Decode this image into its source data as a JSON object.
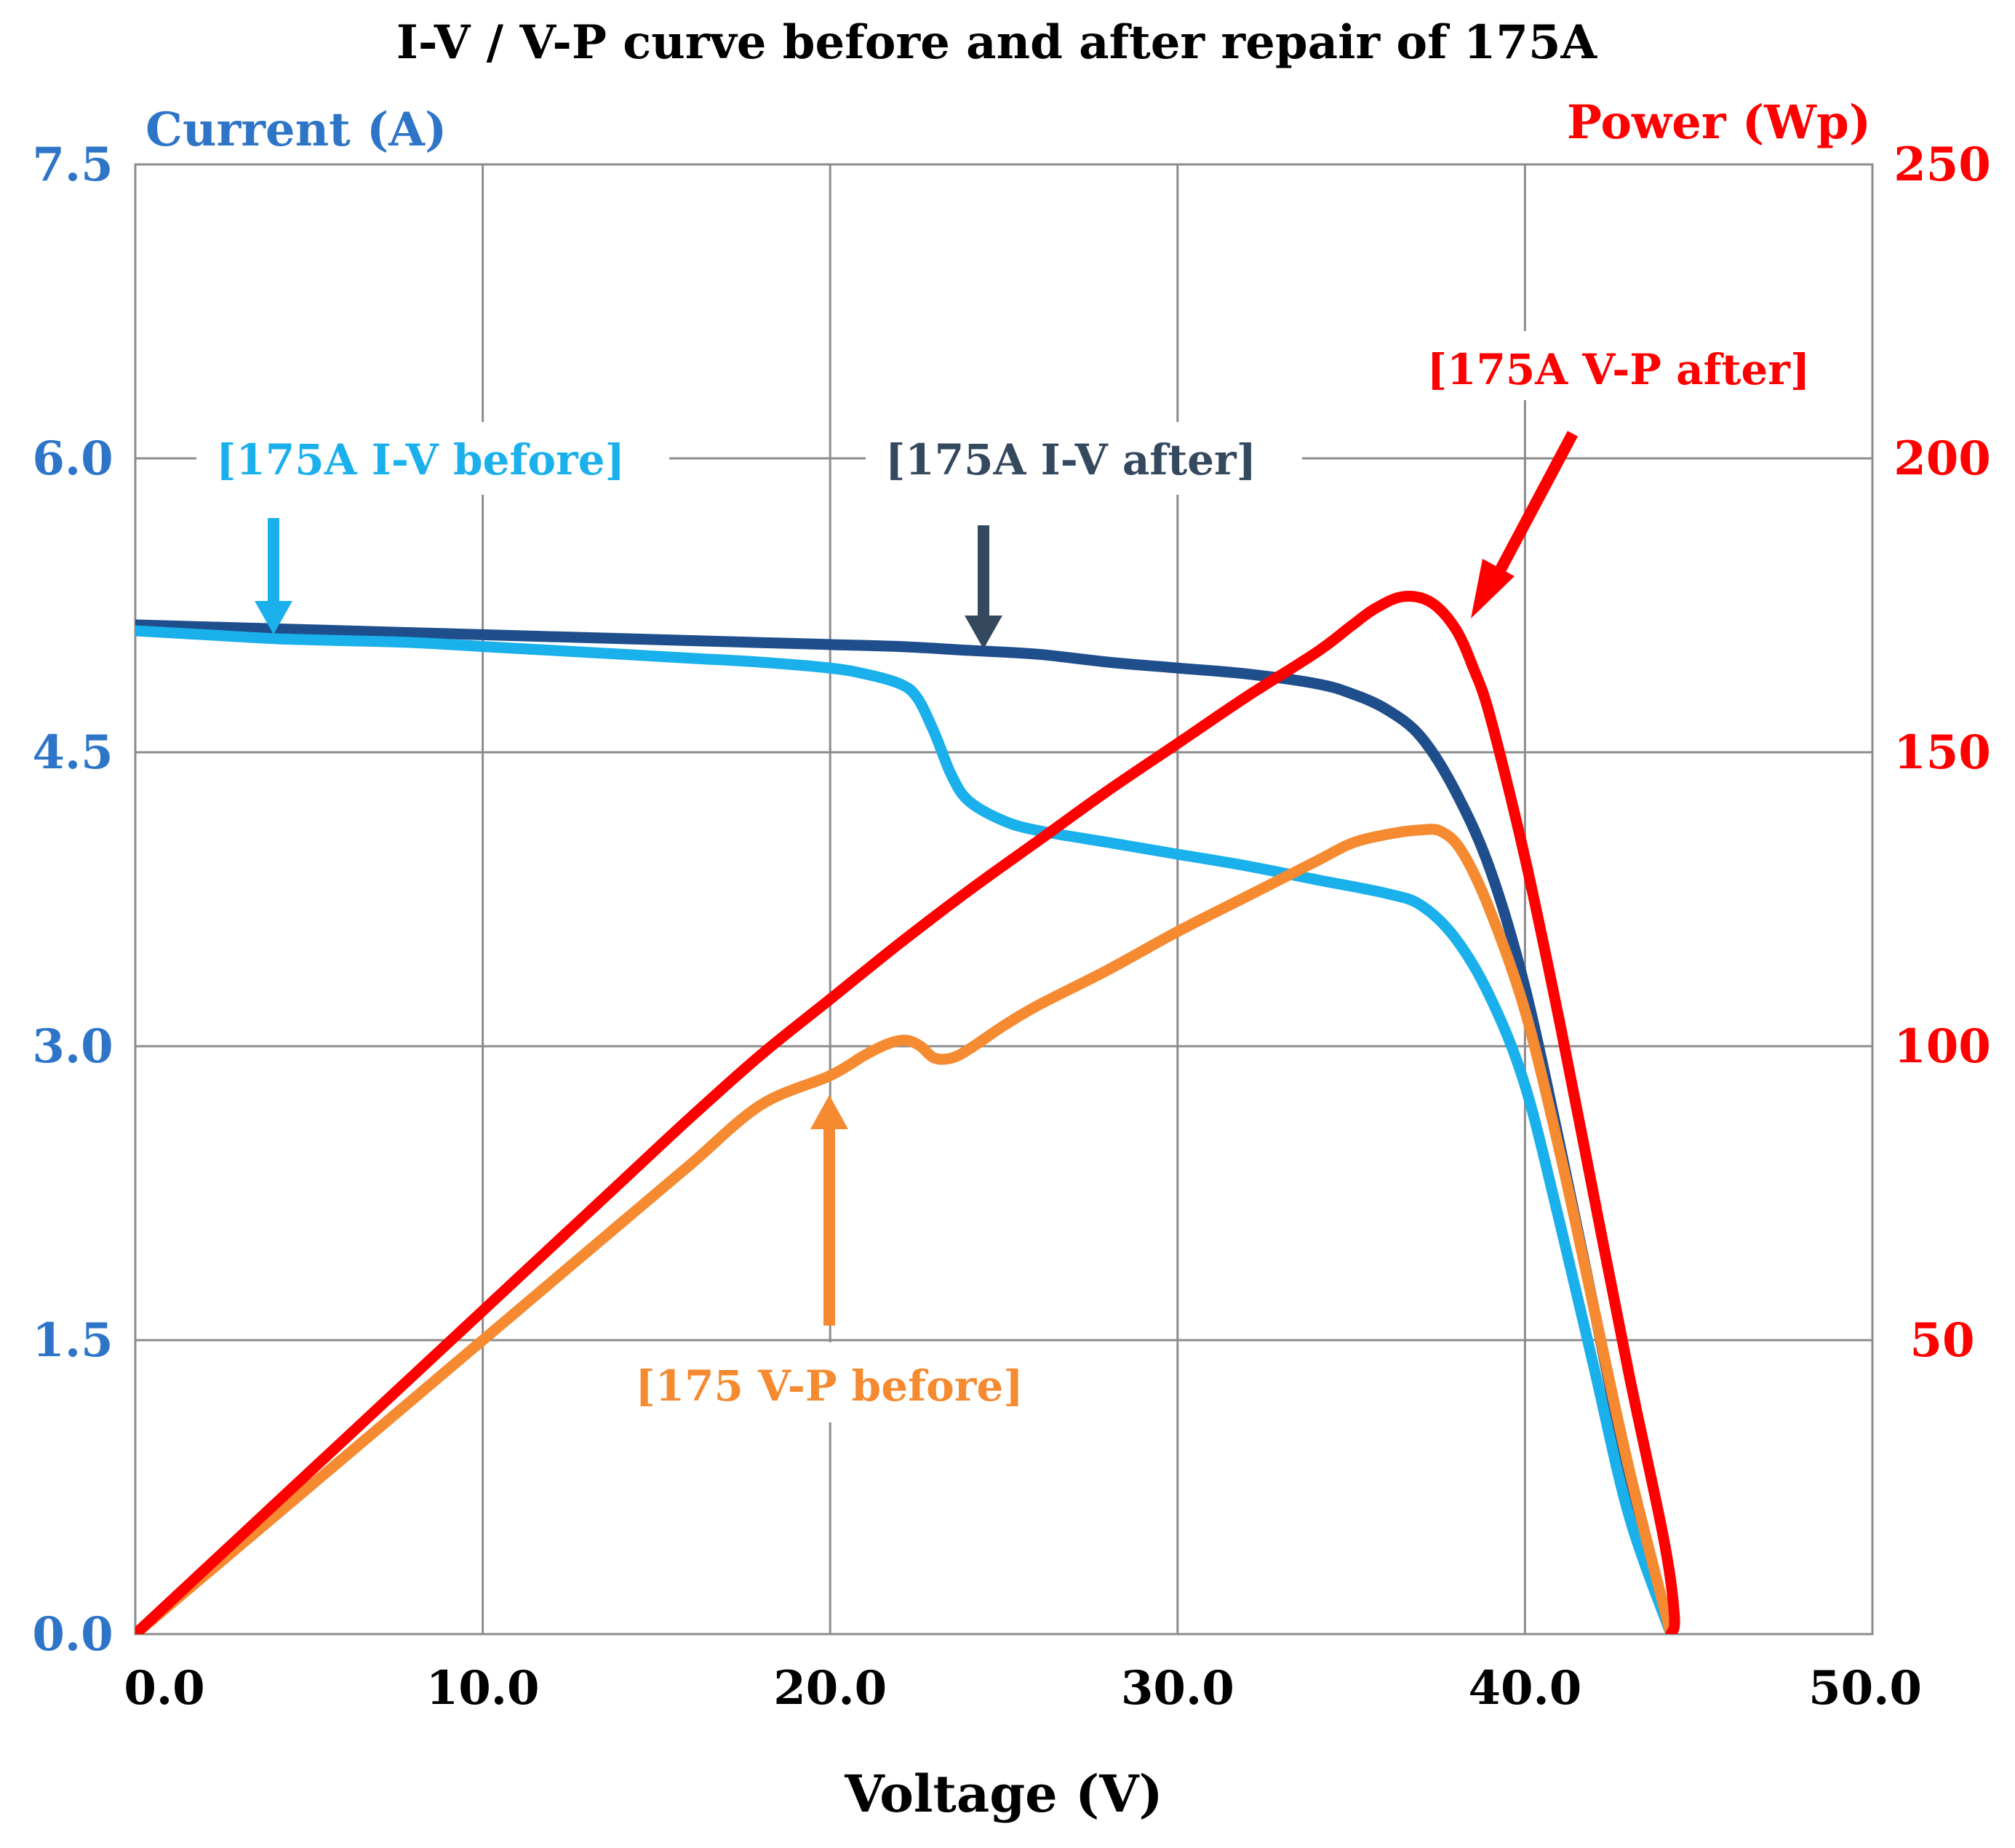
{
  "chart_data": {
    "type": "line",
    "title": "I-V / V-P curve before and after repair of 175A",
    "xlabel": "Voltage (V)",
    "ylabel_left": "Current (A)",
    "ylabel_right": "Power (Wp)",
    "xlim": [
      0,
      50
    ],
    "ylim_left": [
      0,
      7.5
    ],
    "ylim_right": [
      0,
      250
    ],
    "grid": true,
    "x_ticks": [
      0,
      10,
      20,
      30,
      40,
      50
    ],
    "x_tick_labels": [
      "0.0",
      "10.0",
      "20.0",
      "30.0",
      "40.0",
      "50.0"
    ],
    "y_left_ticks": [
      0,
      1.5,
      3.0,
      4.5,
      6.0,
      7.5
    ],
    "y_left_tick_labels": [
      "0.0",
      "1.5",
      "3.0",
      "4.5",
      "6.0",
      "7.5"
    ],
    "y_right_ticks": [
      50,
      100,
      150,
      200,
      250
    ],
    "y_right_tick_labels": [
      "50",
      "100",
      "150",
      "200",
      "250"
    ],
    "colors": {
      "left_axis": "#2e75c8",
      "right_axis": "#ff0000",
      "iv_before": "#1ab0ec",
      "iv_after": "#1f4e8c",
      "vp_before": "#f58a30",
      "vp_after": "#ff0000",
      "arrow_iv_after": "#34495e"
    },
    "series": [
      {
        "name": "175A I-V before",
        "axis": "left",
        "x": [
          0,
          2,
          4,
          6,
          8,
          10,
          12,
          14,
          16,
          18,
          20,
          21,
          22,
          22.5,
          23,
          23.5,
          24,
          25,
          26,
          28,
          30,
          32,
          34,
          36,
          37,
          38,
          39,
          40,
          41,
          42,
          43,
          44.2
        ],
        "y": [
          5.12,
          5.1,
          5.08,
          5.07,
          5.06,
          5.04,
          5.02,
          5.0,
          4.98,
          4.96,
          4.93,
          4.9,
          4.85,
          4.78,
          4.6,
          4.38,
          4.25,
          4.15,
          4.1,
          4.04,
          3.98,
          3.92,
          3.85,
          3.78,
          3.72,
          3.55,
          3.25,
          2.8,
          2.1,
          1.35,
          0.6,
          0
        ]
      },
      {
        "name": "175A I-V after",
        "axis": "left",
        "x": [
          0,
          2,
          4,
          6,
          8,
          10,
          12,
          14,
          16,
          18,
          20,
          22,
          24,
          26,
          28,
          30,
          32,
          34,
          35,
          36,
          37,
          38,
          39,
          40,
          41,
          42,
          43,
          44.2
        ],
        "y": [
          5.15,
          5.14,
          5.13,
          5.12,
          5.11,
          5.1,
          5.09,
          5.08,
          5.07,
          5.06,
          5.05,
          5.04,
          5.02,
          5.0,
          4.96,
          4.93,
          4.9,
          4.85,
          4.8,
          4.72,
          4.58,
          4.3,
          3.9,
          3.3,
          2.5,
          1.65,
          0.8,
          0
        ]
      },
      {
        "name": "175 V-P before",
        "axis": "right",
        "x": [
          0,
          2,
          4,
          6,
          8,
          10,
          12,
          14,
          16,
          18,
          20,
          21,
          21.7,
          22.2,
          22.6,
          23,
          23.5,
          24,
          25,
          26,
          28,
          30,
          32,
          34,
          35,
          36,
          37,
          37.6,
          38.2,
          39,
          40,
          41,
          42,
          43,
          44.2
        ],
        "y": [
          0,
          10,
          20,
          30,
          40,
          50,
          60,
          70,
          80,
          90,
          95,
          98.5,
          100.5,
          101,
          100,
          98,
          98,
          99.5,
          103.5,
          107,
          113,
          119.5,
          125.5,
          131.5,
          134.5,
          136,
          136.8,
          136.5,
          133,
          123,
          106,
          82,
          55,
          28,
          0
        ]
      },
      {
        "name": "175A V-P after",
        "axis": "right",
        "x": [
          0,
          2,
          4,
          6,
          8,
          10,
          12,
          14,
          16,
          18,
          20,
          22,
          24,
          26,
          28,
          30,
          32,
          34,
          35,
          35.7,
          36.5,
          37.3,
          38,
          38.5,
          39,
          40,
          41,
          42,
          43,
          44,
          44.3,
          44.2
        ],
        "y": [
          0,
          11,
          22,
          33,
          44,
          55,
          66,
          77,
          88,
          98.5,
          108,
          117.5,
          126.5,
          135,
          143.5,
          151.5,
          159.5,
          167,
          171.5,
          174.5,
          176.5,
          175.5,
          171,
          164.5,
          156,
          132,
          104,
          74,
          44,
          16,
          3,
          0
        ]
      }
    ],
    "annotations": [
      {
        "label": "[175A I-V before]",
        "series": "175A I-V before"
      },
      {
        "label": "[175A I-V after]",
        "series": "175A I-V after"
      },
      {
        "label": "[175A V-P after]",
        "series": "175A V-P after"
      },
      {
        "label": "[175 V-P before]",
        "series": "175 V-P before"
      }
    ]
  }
}
